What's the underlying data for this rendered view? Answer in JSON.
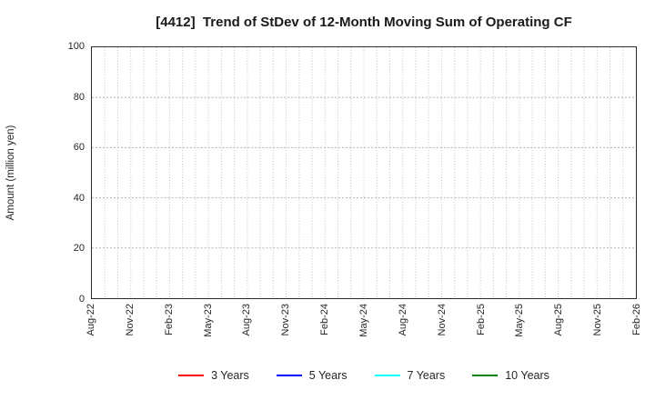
{
  "chart_data": {
    "type": "line",
    "title": "[4412]  Trend of StDev of 12-Month Moving Sum of Operating CF",
    "ylabel": "Amount (million yen)",
    "xlabel": "",
    "ylim": [
      0,
      100
    ],
    "yticks": [
      0,
      20,
      40,
      60,
      80,
      100
    ],
    "x_tick_labels": [
      "Aug-22",
      "Nov-22",
      "Feb-23",
      "May-23",
      "Aug-23",
      "Nov-23",
      "Feb-24",
      "May-24",
      "Aug-24",
      "Nov-24",
      "Feb-25",
      "May-25",
      "Aug-25",
      "Nov-25",
      "Feb-26"
    ],
    "months_between_labels": 3,
    "total_month_intervals": 42,
    "grid": true,
    "grid_color_vertical": "#c3c3c3",
    "grid_color_horizontal": "#b3b3b3",
    "legend_position": "bottom",
    "series": [
      {
        "name": "3 Years",
        "color": "#ff0000",
        "values": []
      },
      {
        "name": "5 Years",
        "color": "#0000ff",
        "values": []
      },
      {
        "name": "7 Years",
        "color": "#00ffff",
        "values": []
      },
      {
        "name": "10 Years",
        "color": "#008000",
        "values": []
      }
    ]
  }
}
